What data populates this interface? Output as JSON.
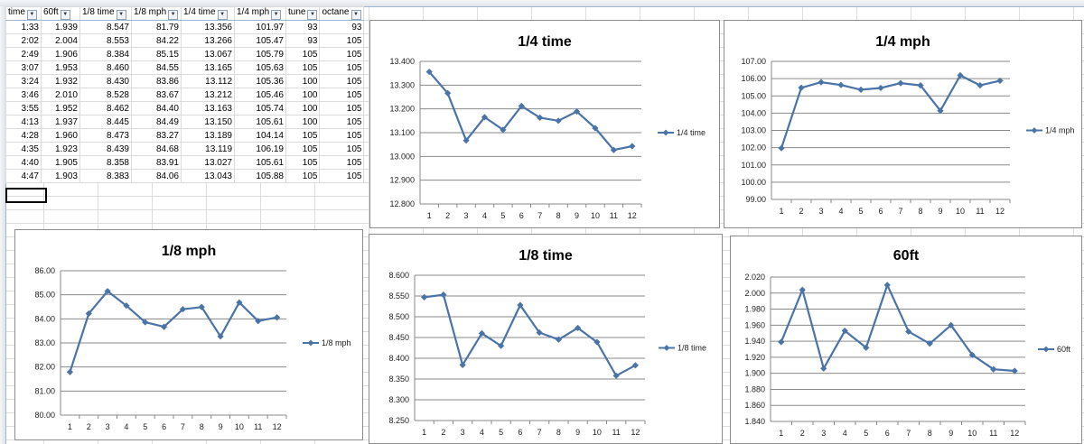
{
  "theme": {
    "series_color": "#4a74a8",
    "gridline_color": "#8a8a8a",
    "sheet_grid_color": "#dadcdd"
  },
  "table": {
    "headers": [
      "time",
      "60ft",
      "1/8 time",
      "1/8 mph",
      "1/4 time",
      "1/4 mph",
      "tune",
      "octane"
    ],
    "filter_icon": "dropdown-arrow-icon",
    "rows": [
      [
        "1:33",
        "1.939",
        "8.547",
        "81.79",
        "13.356",
        "101.97",
        "93",
        "93"
      ],
      [
        "2:02",
        "2.004",
        "8.553",
        "84.22",
        "13.266",
        "105.47",
        "93",
        "105"
      ],
      [
        "2:49",
        "1.906",
        "8.384",
        "85.15",
        "13.067",
        "105.79",
        "105",
        "105"
      ],
      [
        "3:07",
        "1.953",
        "8.460",
        "84.55",
        "13.165",
        "105.63",
        "105",
        "105"
      ],
      [
        "3:24",
        "1.932",
        "8.430",
        "83.86",
        "13.112",
        "105.36",
        "100",
        "105"
      ],
      [
        "3:46",
        "2.010",
        "8.528",
        "83.67",
        "13.212",
        "105.46",
        "100",
        "105"
      ],
      [
        "3:55",
        "1.952",
        "8.462",
        "84.40",
        "13.163",
        "105.74",
        "100",
        "105"
      ],
      [
        "4:13",
        "1.937",
        "8.445",
        "84.49",
        "13.150",
        "105.61",
        "100",
        "105"
      ],
      [
        "4:28",
        "1.960",
        "8.473",
        "83.27",
        "13.189",
        "104.14",
        "105",
        "105"
      ],
      [
        "4:35",
        "1.923",
        "8.439",
        "84.68",
        "13.119",
        "106.19",
        "105",
        "105"
      ],
      [
        "4:40",
        "1.905",
        "8.358",
        "83.91",
        "13.027",
        "105.61",
        "105",
        "105"
      ],
      [
        "4:47",
        "1.903",
        "8.383",
        "84.06",
        "13.043",
        "105.88",
        "105",
        "105"
      ]
    ]
  },
  "chart_data": [
    {
      "id": "quarter-time",
      "type": "line",
      "title": "1/4 time",
      "x": [
        1,
        2,
        3,
        4,
        5,
        6,
        7,
        8,
        9,
        10,
        11,
        12
      ],
      "series": [
        {
          "name": "1/4 time",
          "values": [
            13.356,
            13.266,
            13.067,
            13.165,
            13.112,
            13.212,
            13.163,
            13.15,
            13.189,
            13.119,
            13.027,
            13.043
          ]
        }
      ],
      "ylim": [
        12.8,
        13.4
      ],
      "ystep": 0.1,
      "ydecimals": 3,
      "yticks": [
        "12.800",
        "12.900",
        "13.000",
        "13.100",
        "13.200",
        "13.300",
        "13.400"
      ],
      "legend": "right",
      "grid": true
    },
    {
      "id": "quarter-mph",
      "type": "line",
      "title": "1/4 mph",
      "x": [
        1,
        2,
        3,
        4,
        5,
        6,
        7,
        8,
        9,
        10,
        11,
        12
      ],
      "series": [
        {
          "name": "1/4 mph",
          "values": [
            101.97,
            105.47,
            105.79,
            105.63,
            105.36,
            105.46,
            105.74,
            105.61,
            104.14,
            106.19,
            105.61,
            105.88
          ]
        }
      ],
      "ylim": [
        99,
        107
      ],
      "ystep": 1,
      "ydecimals": 2,
      "yticks": [
        "99.00",
        "100.00",
        "101.00",
        "102.00",
        "103.00",
        "104.00",
        "105.00",
        "106.00",
        "107.00"
      ],
      "legend": "right",
      "grid": true
    },
    {
      "id": "eighth-mph",
      "type": "line",
      "title": "1/8 mph",
      "x": [
        1,
        2,
        3,
        4,
        5,
        6,
        7,
        8,
        9,
        10,
        11,
        12
      ],
      "series": [
        {
          "name": "1/8 mph",
          "values": [
            81.79,
            84.22,
            85.15,
            84.55,
            83.86,
            83.67,
            84.4,
            84.49,
            83.27,
            84.68,
            83.91,
            84.06
          ]
        }
      ],
      "ylim": [
        80,
        86
      ],
      "ystep": 1,
      "ydecimals": 2,
      "yticks": [
        "80.00",
        "81.00",
        "82.00",
        "83.00",
        "84.00",
        "85.00",
        "86.00"
      ],
      "legend": "right",
      "grid": true
    },
    {
      "id": "eighth-time",
      "type": "line",
      "title": "1/8 time",
      "x": [
        1,
        2,
        3,
        4,
        5,
        6,
        7,
        8,
        9,
        10,
        11,
        12
      ],
      "series": [
        {
          "name": "1/8 time",
          "values": [
            8.547,
            8.553,
            8.384,
            8.46,
            8.43,
            8.528,
            8.462,
            8.445,
            8.473,
            8.439,
            8.358,
            8.383
          ]
        }
      ],
      "ylim": [
        8.25,
        8.6
      ],
      "ystep": 0.05,
      "ydecimals": 3,
      "yticks": [
        "8.250",
        "8.300",
        "8.350",
        "8.400",
        "8.450",
        "8.500",
        "8.550",
        "8.600"
      ],
      "legend": "right",
      "grid": true
    },
    {
      "id": "sixty-ft",
      "type": "line",
      "title": "60ft",
      "x": [
        1,
        2,
        3,
        4,
        5,
        6,
        7,
        8,
        9,
        10,
        11,
        12
      ],
      "series": [
        {
          "name": "60ft",
          "values": [
            1.939,
            2.004,
            1.906,
            1.953,
            1.932,
            2.01,
            1.952,
            1.937,
            1.96,
            1.923,
            1.905,
            1.903
          ]
        }
      ],
      "ylim": [
        1.84,
        2.02
      ],
      "ystep": 0.02,
      "ydecimals": 3,
      "yticks": [
        "1.840",
        "1.860",
        "1.880",
        "1.900",
        "1.920",
        "1.940",
        "1.960",
        "1.980",
        "2.000",
        "2.020"
      ],
      "legend": "right",
      "grid": true
    }
  ]
}
